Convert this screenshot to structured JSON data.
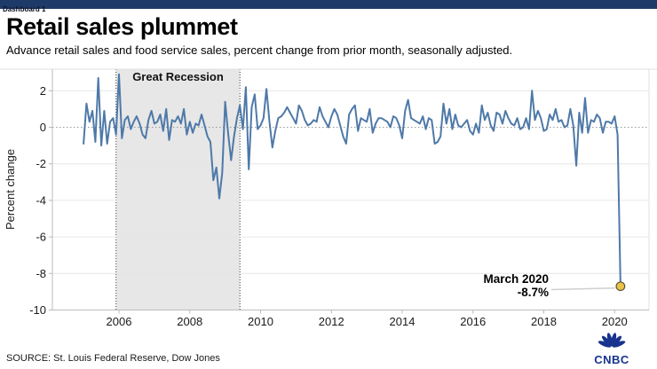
{
  "window": {
    "tab_label": "Dashboard 1"
  },
  "header": {
    "title": "Retail sales plummet",
    "subtitle": "Advance retail sales and food service sales, percent change from prior month, seasonally adjusted."
  },
  "chart_data": {
    "type": "line",
    "ylabel": "Percent change",
    "ylim": [
      -10,
      3.2
    ],
    "yticks": [
      2,
      0,
      -2,
      -4,
      -6,
      -8,
      -10
    ],
    "xticks": [
      2006,
      2008,
      2010,
      2012,
      2014,
      2016,
      2018,
      2020
    ],
    "grid": "horizontal, zero line dotted",
    "legend": "none",
    "line_color": "#4e79a8",
    "band": {
      "label": "Great Recession",
      "from": "2005-12",
      "to": "2009-06",
      "fill": "#e7e7e7"
    },
    "annotation": {
      "label": "March 2020",
      "value_label": "-8.7%",
      "x": "2020-03",
      "y": -8.7,
      "dot_color": "#e9c247"
    },
    "series": [
      {
        "name": "Advance retail and food service sales, percent change from prior month",
        "start": "2005-01",
        "frequency": "monthly",
        "values": [
          -0.9,
          1.3,
          0.3,
          0.9,
          -0.8,
          2.7,
          -1.0,
          0.9,
          -0.9,
          0.3,
          0.5,
          -0.4,
          2.9,
          -0.6,
          0.4,
          0.6,
          -0.1,
          0.3,
          0.6,
          0.2,
          -0.4,
          -0.6,
          0.4,
          0.9,
          0.2,
          0.3,
          0.7,
          -0.2,
          1.0,
          -0.7,
          0.4,
          0.3,
          0.6,
          0.2,
          1.0,
          -0.4,
          0.3,
          -0.3,
          0.2,
          0.1,
          0.7,
          0.1,
          -0.5,
          -0.8,
          -2.9,
          -2.2,
          -3.9,
          -2.5,
          1.4,
          -0.3,
          -1.8,
          -0.5,
          0.5,
          1.2,
          -0.1,
          2.2,
          -2.3,
          1.1,
          1.8,
          -0.1,
          0.1,
          0.5,
          2.1,
          0.3,
          -1.1,
          -0.2,
          0.5,
          0.6,
          0.8,
          1.1,
          0.8,
          0.5,
          0.2,
          1.2,
          0.9,
          0.4,
          0.1,
          0.2,
          0.4,
          0.3,
          1.1,
          0.6,
          0.3,
          0.0,
          0.6,
          1.0,
          0.7,
          0.1,
          -0.5,
          -0.9,
          0.7,
          1.0,
          1.2,
          -0.2,
          0.5,
          0.4,
          0.3,
          1.0,
          -0.3,
          0.2,
          0.5,
          0.5,
          0.4,
          0.3,
          0.0,
          0.6,
          0.5,
          0.1,
          -0.6,
          0.9,
          1.5,
          0.5,
          0.4,
          0.3,
          0.2,
          0.6,
          -0.1,
          0.5,
          0.4,
          -0.9,
          -0.8,
          -0.5,
          1.3,
          0.2,
          1.0,
          -0.1,
          0.7,
          0.1,
          0.0,
          0.2,
          0.4,
          -0.2,
          -0.4,
          0.2,
          -0.3,
          1.2,
          0.4,
          0.8,
          0.1,
          -0.2,
          0.8,
          0.7,
          0.2,
          0.9,
          0.5,
          0.2,
          0.1,
          0.5,
          -0.1,
          0.0,
          0.5,
          -0.1,
          2.0,
          0.4,
          0.9,
          0.5,
          -0.2,
          -0.1,
          0.7,
          0.4,
          1.0,
          0.3,
          0.4,
          0.0,
          0.1,
          1.0,
          0.1,
          -2.1,
          0.8,
          -0.3,
          1.6,
          -0.3,
          0.4,
          0.3,
          0.7,
          0.5,
          -0.3,
          0.3,
          0.3,
          0.2,
          0.6,
          -0.4,
          -8.7
        ]
      }
    ]
  },
  "footer": {
    "source": "SOURCE: St. Louis Federal Reserve, Dow Jones",
    "logo_text": "CNBC"
  },
  "colors": {
    "topbar": "#1e3a68",
    "line": "#4e79a8",
    "band": "#e7e7e7",
    "dot": "#e9c247",
    "logo": "#17338f"
  }
}
